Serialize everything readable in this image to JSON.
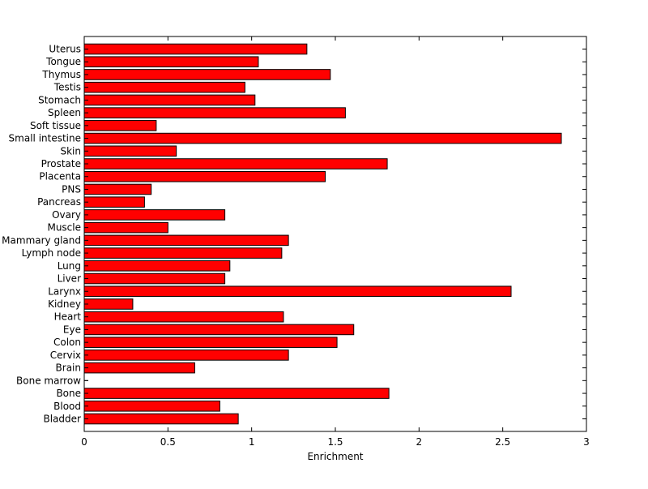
{
  "chart_data": {
    "type": "bar",
    "orientation": "horizontal",
    "categories": [
      "Uterus",
      "Tongue",
      "Thymus",
      "Testis",
      "Stomach",
      "Spleen",
      "Soft tissue",
      "Small intestine",
      "Skin",
      "Prostate",
      "Placenta",
      "PNS",
      "Pancreas",
      "Ovary",
      "Muscle",
      "Mammary gland",
      "Lymph node",
      "Lung",
      "Liver",
      "Larynx",
      "Kidney",
      "Heart",
      "Eye",
      "Colon",
      "Cervix",
      "Brain",
      "Bone marrow",
      "Bone",
      "Blood",
      "Bladder"
    ],
    "values": [
      1.33,
      1.04,
      1.47,
      0.96,
      1.02,
      1.56,
      0.43,
      2.85,
      0.55,
      1.81,
      1.44,
      0.4,
      0.36,
      0.84,
      0.5,
      1.22,
      1.18,
      0.87,
      0.84,
      2.55,
      0.29,
      1.19,
      1.61,
      1.51,
      1.22,
      0.66,
      0.0,
      1.82,
      0.81,
      0.92
    ],
    "title": "",
    "xlabel": "Enrichment",
    "ylabel": "",
    "xlim": [
      0,
      3
    ],
    "xticks": [
      0,
      0.5,
      1,
      1.5,
      2,
      2.5,
      3
    ],
    "xtick_labels": [
      "0",
      "0.5",
      "1",
      "1.5",
      "2",
      "2.5",
      "3"
    ],
    "grid": false,
    "legend": "none",
    "bar_color": "#ff0000",
    "edge_color": "#000000"
  }
}
